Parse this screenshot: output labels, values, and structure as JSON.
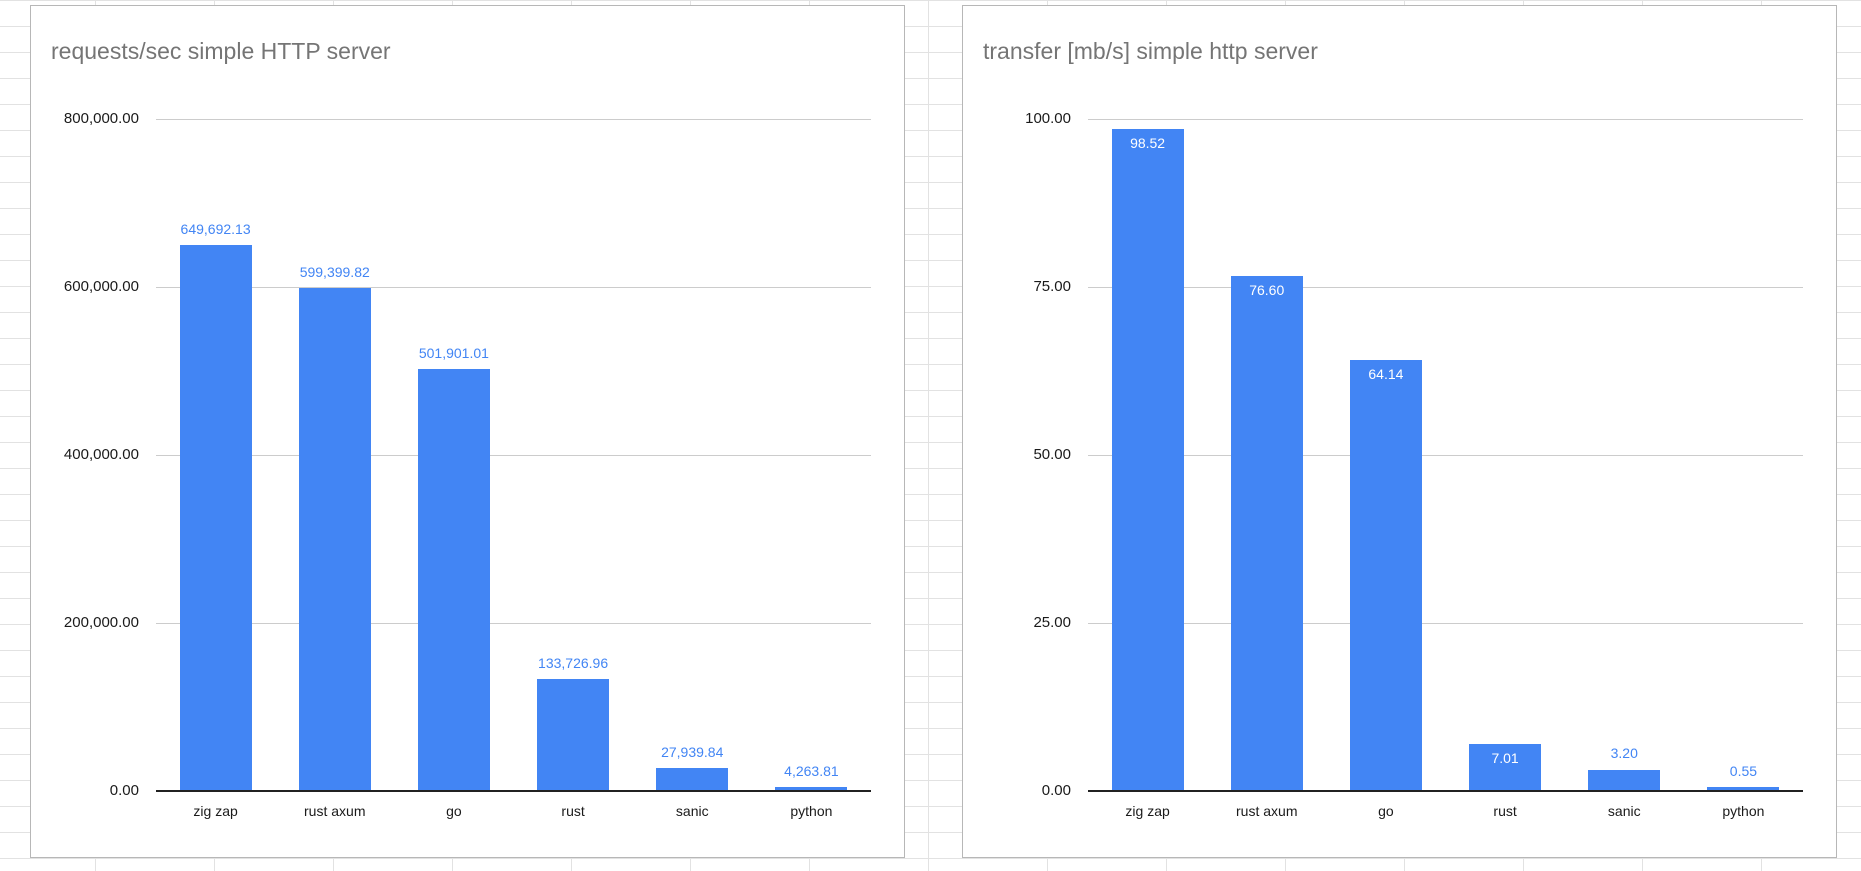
{
  "colors": {
    "bar": "#4285f4",
    "value_label_blue": "#4285f4",
    "value_label_white": "#ffffff",
    "title_gray": "#757575",
    "gridline": "#cccccc",
    "axis_baseline": "#212121",
    "sheet_gridline": "#e2e2e2"
  },
  "chart_data": [
    {
      "type": "bar",
      "title": "requests/sec simple HTTP server",
      "categories": [
        "zig zap",
        "rust axum",
        "go",
        "rust",
        "sanic",
        "python"
      ],
      "values": [
        649692.13,
        599399.82,
        501901.01,
        133726.96,
        27939.84,
        4263.81
      ],
      "value_labels": [
        "649,692.13",
        "599,399.82",
        "501,901.01",
        "133,726.96",
        "27,939.84",
        "4,263.81"
      ],
      "label_placement": [
        "above",
        "above",
        "above",
        "above",
        "above",
        "above"
      ],
      "ylim": [
        0,
        800000
      ],
      "y_ticks": [
        {
          "value": 800000,
          "label": "800,000.00"
        },
        {
          "value": 600000,
          "label": "600,000.00"
        },
        {
          "value": 400000,
          "label": "400,000.00"
        },
        {
          "value": 200000,
          "label": "200,000.00"
        },
        {
          "value": 0,
          "label": "0.00"
        }
      ],
      "grid": true,
      "legend": "none",
      "xlabel": "",
      "ylabel": ""
    },
    {
      "type": "bar",
      "title": "transfer [mb/s] simple http server",
      "categories": [
        "zig zap",
        "rust axum",
        "go",
        "rust",
        "sanic",
        "python"
      ],
      "values": [
        98.52,
        76.6,
        64.14,
        7.01,
        3.2,
        0.55
      ],
      "value_labels": [
        "98.52",
        "76.60",
        "64.14",
        "7.01",
        "3.20",
        "0.55"
      ],
      "label_placement": [
        "inside",
        "inside",
        "inside",
        "inside",
        "above",
        "above"
      ],
      "ylim": [
        0,
        100
      ],
      "y_ticks": [
        {
          "value": 100,
          "label": "100.00"
        },
        {
          "value": 75,
          "label": "75.00"
        },
        {
          "value": 50,
          "label": "50.00"
        },
        {
          "value": 25,
          "label": "25.00"
        },
        {
          "value": 0,
          "label": "0.00"
        }
      ],
      "grid": true,
      "legend": "none",
      "xlabel": "",
      "ylabel": ""
    }
  ]
}
